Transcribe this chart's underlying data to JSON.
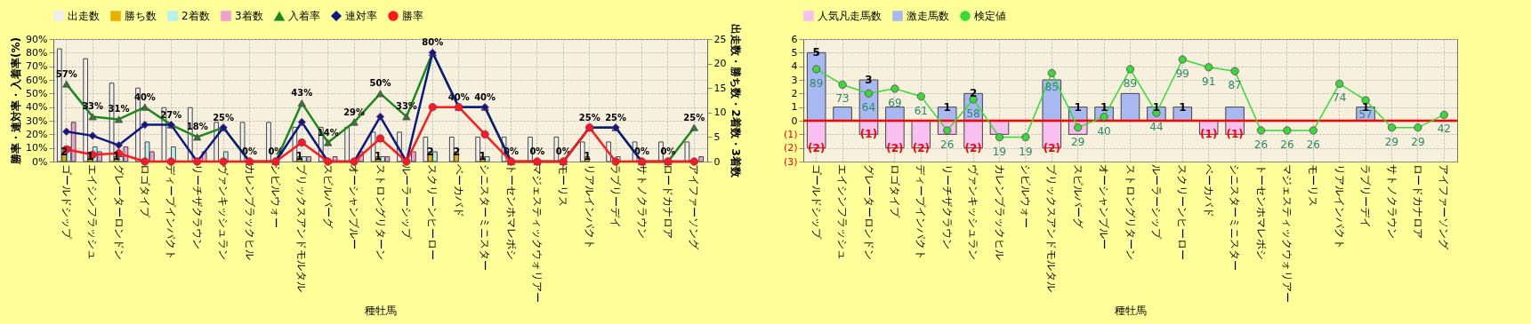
{
  "chart_data": [
    {
      "type": "bar",
      "xlabel": "種牡馬",
      "ylabel": "勝率・連対率・入着率(%)",
      "y2label": "出走数・勝ち数・2着数・3着数",
      "legend": "top",
      "grid": true,
      "categories": [
        "ゴールドシップ",
        "エイシンフラッシュ",
        "グレーターロンドン",
        "ロゴタイプ",
        "ディープインパクト",
        "リーチザクラウン",
        "ヴァンキッシュラン",
        "カレンブラックヒル",
        "シビルウォー",
        "ブリックスアンドモルタル",
        "スピルバーグ",
        "オーシャンブルー",
        "ストロングリターン",
        "ルーラーシップ",
        "スクリーンヒーロー",
        "ベーカバド",
        "シニスターミニスター",
        "トーセンホマレボシ",
        "マジェスティックウォリアー",
        "モーリス",
        "リアルインパクト",
        "ラブリーデイ",
        "サトノクラウン",
        "ロードカナロア",
        "アイファーソング"
      ],
      "ylim": [
        0,
        90
      ],
      "yticks": [
        {
          "value": 0,
          "label": "0%"
        },
        {
          "value": 10,
          "label": "10%"
        },
        {
          "value": 20,
          "label": "20%"
        },
        {
          "value": 30,
          "label": "30%"
        },
        {
          "value": 40,
          "label": "40%"
        },
        {
          "value": 50,
          "label": "50%"
        },
        {
          "value": 60,
          "label": "60%"
        },
        {
          "value": 70,
          "label": "70%"
        },
        {
          "value": 80,
          "label": "80%"
        },
        {
          "value": 90,
          "label": "90%"
        }
      ],
      "y2lim": [
        0,
        25
      ],
      "y2ticks": [
        0,
        5,
        10,
        15,
        20,
        25
      ],
      "series": [
        {
          "name": "出走数",
          "color": "#eeeeee",
          "axis": "y2",
          "values": [
            23,
            21,
            16,
            15,
            11,
            11,
            8,
            8,
            8,
            7,
            7,
            7,
            6,
            6,
            5,
            5,
            5,
            5,
            5,
            5,
            4,
            4,
            4,
            4,
            4
          ]
        },
        {
          "name": "勝ち数",
          "color": "#e8b000",
          "axis": "y2",
          "values": [
            2,
            1,
            1,
            0,
            0,
            0,
            0,
            0,
            0,
            1,
            0,
            0,
            1,
            0,
            2,
            2,
            1,
            0,
            0,
            0,
            1,
            0,
            0,
            0,
            0
          ],
          "value_labels": [
            "2",
            "1",
            "1",
            null,
            null,
            null,
            null,
            null,
            null,
            "1",
            null,
            null,
            "1",
            null,
            "2",
            "2",
            "1",
            null,
            null,
            null,
            "1",
            null,
            null,
            null,
            null
          ]
        },
        {
          "name": "2着数",
          "color": "#b8f0f0",
          "axis": "y2",
          "values": [
            3,
            3,
            1,
            4,
            3,
            0,
            2,
            0,
            0,
            1,
            0,
            0,
            1,
            0,
            2,
            0,
            1,
            0,
            0,
            0,
            0,
            1,
            0,
            0,
            0
          ]
        },
        {
          "name": "3着数",
          "color": "#f0a0d0",
          "axis": "y2",
          "values": [
            8,
            2,
            3,
            2,
            0,
            2,
            0,
            0,
            0,
            1,
            1,
            2,
            1,
            2,
            0,
            0,
            0,
            0,
            0,
            0,
            0,
            0,
            0,
            0,
            1
          ]
        },
        {
          "name": "入着率",
          "type": "line",
          "marker": "triangle",
          "color": "#1a8a1a",
          "values": [
            57,
            33,
            31,
            40,
            27,
            18,
            25,
            0,
            0,
            43,
            14,
            29,
            50,
            33,
            80,
            40,
            40,
            0,
            0,
            0,
            25,
            25,
            0,
            0,
            25
          ],
          "value_labels": [
            "57%",
            "33%",
            "31%",
            "40%",
            "27%",
            "18%",
            "25%",
            "0%",
            "0%",
            "43%",
            "14%",
            "29%",
            "50%",
            "33%",
            "80%",
            "40%",
            "40%",
            "0%",
            "0%",
            "0%",
            "25%",
            "25%",
            "0%",
            "0%",
            "25%"
          ]
        },
        {
          "name": "連対率",
          "type": "line",
          "marker": "diamond",
          "color": "#0a1a80",
          "values": [
            22,
            19,
            12,
            27,
            27,
            0,
            25,
            0,
            0,
            29,
            0,
            0,
            33,
            0,
            80,
            40,
            40,
            0,
            0,
            0,
            25,
            25,
            0,
            0,
            0
          ]
        },
        {
          "name": "勝率",
          "type": "line",
          "marker": "circle",
          "color": "#ff1a1a",
          "values": [
            9,
            5,
            6,
            0,
            0,
            0,
            0,
            0,
            0,
            14,
            0,
            0,
            17,
            0,
            40,
            40,
            20,
            0,
            0,
            0,
            25,
            0,
            0,
            0,
            0
          ]
        }
      ]
    },
    {
      "type": "bar",
      "xlabel": "種牡馬",
      "legend": "top",
      "grid": true,
      "stacked": true,
      "categories": [
        "ゴールドシップ",
        "エイシンフラッシュ",
        "グレーターロンドン",
        "ロゴタイプ",
        "ディープインパクト",
        "リーチザクラウン",
        "ヴァンキッシュラン",
        "カレンブラックヒル",
        "シビルウォー",
        "ブリックスアンドモルタル",
        "スピルバーグ",
        "オーシャンブルー",
        "ストロングリターン",
        "ルーラーシップ",
        "スクリーンヒーロー",
        "ベーカバド",
        "シニスターミニスター",
        "トーセンホマレボシ",
        "マジェスティックウォリアー",
        "モーリス",
        "リアルインパクト",
        "ラブリーデイ",
        "サトノクラウン",
        "ロードカナロア",
        "アイファーソング"
      ],
      "ylim": [
        -3,
        6
      ],
      "yticks": [
        6,
        5,
        4,
        3,
        2,
        1,
        0,
        {
          "value": -1,
          "label": "(1)"
        },
        {
          "value": -2,
          "label": "(2)"
        },
        {
          "value": -3,
          "label": "(3)"
        }
      ],
      "y2lim": [
        -6,
        120
      ],
      "ref_lines": [
        {
          "axis": "y",
          "value": 0,
          "color": "#ff0000"
        }
      ],
      "series": [
        {
          "name": "人気凡走馬数",
          "color": "#f8c0f0",
          "values": [
            -2,
            0,
            -1,
            -2,
            -2,
            -1,
            -2,
            -1,
            0,
            -2,
            -1,
            0,
            0,
            0,
            0,
            -1,
            -1,
            0,
            0,
            0,
            0,
            0,
            0,
            0,
            0
          ],
          "value_labels": [
            "(2)",
            null,
            "(1)",
            "(2)",
            "(2)",
            null,
            "(2)",
            null,
            null,
            "(2)",
            null,
            null,
            null,
            null,
            null,
            "(1)",
            "(1)",
            null,
            null,
            null,
            null,
            null,
            null,
            null,
            null
          ]
        },
        {
          "name": "激走馬数",
          "color": "#a8b8f0",
          "values": [
            5,
            1,
            3,
            1,
            0,
            1,
            2,
            0,
            0,
            3,
            1,
            1,
            2,
            1,
            1,
            0,
            1,
            0,
            0,
            0,
            0,
            1,
            0,
            0,
            0
          ],
          "value_labels": [
            "5",
            null,
            "3",
            null,
            null,
            "1",
            "2",
            null,
            null,
            null,
            "1",
            "1",
            null,
            "1",
            "1",
            null,
            null,
            null,
            null,
            null,
            null,
            "1",
            null,
            null,
            null
          ]
        },
        {
          "name": "検定値",
          "type": "line",
          "marker": "circle",
          "axis": "y2",
          "color": "#33dd33",
          "values": [
            89,
            73,
            64,
            69,
            61,
            26,
            58,
            19,
            19,
            85,
            29,
            40,
            89,
            44,
            99,
            91,
            87,
            26,
            26,
            26,
            74,
            57,
            29,
            29,
            42
          ],
          "value_labels": [
            "89",
            "73",
            "64",
            "69",
            "61",
            "26",
            "58",
            "19",
            "19",
            "85",
            "29",
            "40",
            "89",
            "44",
            "99",
            "91",
            "87",
            "26",
            "26",
            "26",
            "74",
            "57",
            "29",
            "29",
            "42"
          ]
        }
      ]
    }
  ]
}
